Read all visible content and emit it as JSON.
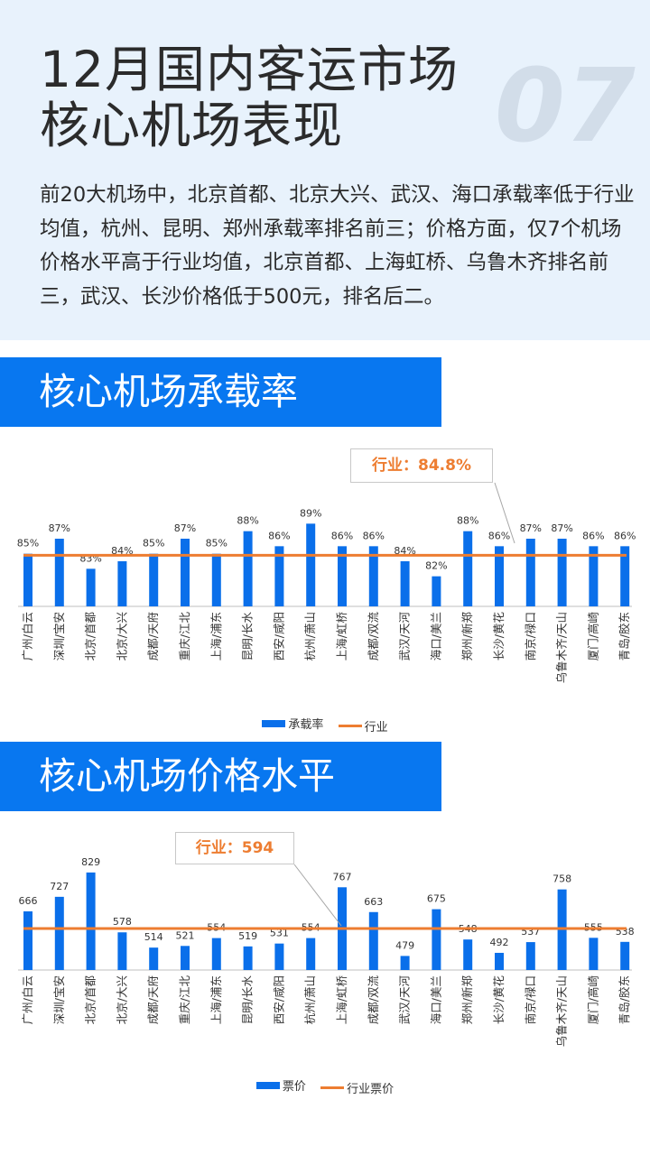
{
  "header": {
    "title_line1": "12月国内客运市场",
    "title_line2": "核心机场表现",
    "page_number": "07",
    "summary": "前20大机场中，北京首都、北京大兴、武汉、海口承载率低于行业均值，杭州、昆明、郑州承载率排名前三；价格方面，仅7个机场价格水平高于行业均值，北京首都、上海虹桥、乌鲁木齐排名前三，武汉、长沙价格低于500元，排名后二。"
  },
  "sections": {
    "load_title": "核心机场承载率",
    "price_title": "核心机场价格水平"
  },
  "colors": {
    "bar": "#0a6fea",
    "line": "#ed7d31",
    "banner": "#0877f0"
  },
  "chart_data": [
    {
      "type": "bar",
      "categories": [
        "广州/白云",
        "深圳/宝安",
        "北京/首都",
        "北京/大兴",
        "成都/天府",
        "重庆/江北",
        "上海/浦东",
        "昆明/长水",
        "西安/咸阳",
        "杭州/萧山",
        "上海/虹桥",
        "成都/双流",
        "武汉/天河",
        "海口/美兰",
        "郑州/新郑",
        "长沙/黄花",
        "南京/禄口",
        "乌鲁木齐/天山",
        "厦门/高崎",
        "青岛/胶东"
      ],
      "series": [
        {
          "name": "承载率",
          "values": [
            85,
            87,
            83,
            84,
            85,
            87,
            85,
            88,
            86,
            89,
            86,
            86,
            84,
            82,
            88,
            86,
            87,
            87,
            86,
            86
          ]
        },
        {
          "name": "行业",
          "values": [
            84.8,
            84.8,
            84.8,
            84.8,
            84.8,
            84.8,
            84.8,
            84.8,
            84.8,
            84.8,
            84.8,
            84.8,
            84.8,
            84.8,
            84.8,
            84.8,
            84.8,
            84.8,
            84.8,
            84.8
          ]
        }
      ],
      "value_labels": [
        "85%",
        "87%",
        "83%",
        "84%",
        "85%",
        "87%",
        "85%",
        "88%",
        "86%",
        "89%",
        "86%",
        "86%",
        "84%",
        "82%",
        "88%",
        "86%",
        "87%",
        "87%",
        "86%",
        "86%"
      ],
      "annotation": "行业：84.8%",
      "ylim": [
        78,
        90
      ]
    },
    {
      "type": "bar",
      "categories": [
        "广州/白云",
        "深圳/宝安",
        "北京/首都",
        "北京/大兴",
        "成都/天府",
        "重庆/江北",
        "上海/浦东",
        "昆明/长水",
        "西安/咸阳",
        "杭州/萧山",
        "上海/虹桥",
        "成都/双流",
        "武汉/天河",
        "海口/美兰",
        "郑州/新郑",
        "长沙/黄花",
        "南京/禄口",
        "乌鲁木齐/天山",
        "厦门/高崎",
        "青岛/胶东"
      ],
      "series": [
        {
          "name": "票价",
          "values": [
            666,
            727,
            829,
            578,
            514,
            521,
            554,
            519,
            531,
            554,
            767,
            663,
            479,
            675,
            548,
            492,
            537,
            758,
            555,
            538
          ]
        },
        {
          "name": "行业票价",
          "values": [
            594,
            594,
            594,
            594,
            594,
            594,
            594,
            594,
            594,
            594,
            594,
            594,
            594,
            594,
            594,
            594,
            594,
            594,
            594,
            594
          ]
        }
      ],
      "value_labels": [
        "666",
        "727",
        "829",
        "578",
        "514",
        "521",
        "554",
        "519",
        "531",
        "554",
        "767",
        "663",
        "479",
        "675",
        "548",
        "492",
        "537",
        "758",
        "555",
        "538"
      ],
      "annotation": "行业：594",
      "ylim": [
        420,
        840
      ]
    }
  ]
}
